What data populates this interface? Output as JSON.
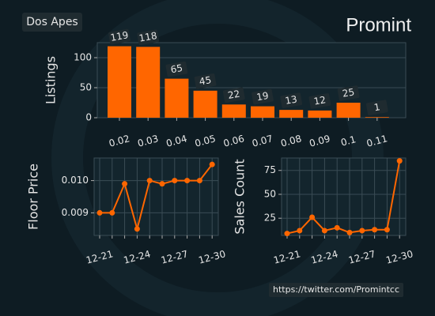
{
  "header": {
    "collection": "Dos Apes",
    "brand": "Promint"
  },
  "footer": {
    "link": "https://twitter.com/Promintcc"
  },
  "chart_data": [
    {
      "type": "bar",
      "ylabel": "Listings",
      "categories": [
        "0.02",
        "0.03",
        "0.04",
        "0.05",
        "0.06",
        "0.07",
        "0.08",
        "0.09",
        "0.1",
        "0.11"
      ],
      "values": [
        119,
        118,
        65,
        45,
        22,
        19,
        13,
        12,
        25,
        1
      ],
      "color": "#ff6600",
      "ylim": [
        0,
        125
      ],
      "yticks": [
        0,
        50,
        100
      ],
      "grid": true
    },
    {
      "type": "line",
      "ylabel": "Floor Price",
      "categories": [
        "12-21",
        null,
        null,
        "12-24",
        null,
        null,
        "12-27",
        null,
        null,
        "12-30"
      ],
      "values": [
        0.009,
        0.009,
        0.0099,
        0.0085,
        0.01,
        0.0099,
        0.01,
        0.01,
        0.01,
        0.0105
      ],
      "color": "#ff6600",
      "ylim": [
        0.0083,
        0.0107
      ],
      "yticks": [
        0.009,
        {
          "value": 0.01,
          "label": "0.010"
        }
      ],
      "grid": true
    },
    {
      "type": "line",
      "ylabel": "Sales Count",
      "categories": [
        "12-21",
        null,
        null,
        "12-24",
        null,
        null,
        "12-27",
        null,
        null,
        "12-30"
      ],
      "values": [
        9,
        12,
        26,
        12,
        15,
        10,
        12,
        13,
        13,
        85
      ],
      "color": "#ff6600",
      "ylim": [
        7,
        88
      ],
      "yticks": [
        25,
        50,
        75
      ],
      "grid": true
    }
  ]
}
